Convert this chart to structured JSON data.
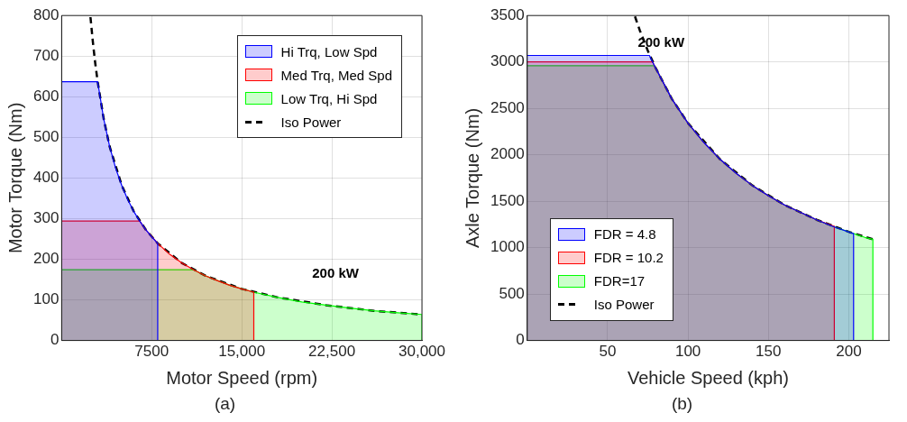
{
  "chart_data": [
    {
      "type": "area",
      "xlabel": "Motor Speed (rpm)",
      "ylabel": "Motor Torque (Nm)",
      "xlim": [
        0,
        30000
      ],
      "xticks": [
        {
          "value": 7500,
          "label": "7500"
        },
        {
          "value": 15000,
          "label": "15,000"
        },
        {
          "value": 22500,
          "label": "22,500"
        },
        {
          "value": 30000,
          "label": "30,000"
        }
      ],
      "ylim": [
        0,
        800
      ],
      "yticks": [
        0,
        100,
        200,
        300,
        400,
        500,
        600,
        700,
        800
      ],
      "grid": true,
      "legend": "top right",
      "marker": "none",
      "series": [
        {
          "name": "Hi Trq, Low Spd",
          "type": "area",
          "color": "#0000ff",
          "x": [
            0,
            3000,
            3500,
            4000,
            4500,
            5000,
            5500,
            6000,
            6500,
            7000,
            7500,
            8000,
            8000
          ],
          "values": [
            637,
            637,
            546,
            477,
            424,
            382,
            347,
            318,
            294,
            273,
            255,
            239,
            0
          ]
        },
        {
          "name": "Med Trq, Med Spd",
          "type": "area",
          "color": "#ff0000",
          "x": [
            0,
            6500,
            7000,
            8000,
            9000,
            10000,
            11000,
            12000,
            13000,
            14000,
            15000,
            16000,
            16000
          ],
          "values": [
            294,
            294,
            273,
            239,
            212,
            191,
            174,
            159,
            147,
            136,
            127,
            119,
            0
          ]
        },
        {
          "name": "Low Trq, Hi Spd",
          "type": "area",
          "color": "#00ff00",
          "x": [
            0,
            11000,
            12000,
            14000,
            16000,
            18000,
            20000,
            22000,
            24000,
            26000,
            28000,
            30000,
            30000
          ],
          "values": [
            174,
            174,
            159,
            136,
            119,
            106,
            95,
            87,
            80,
            73,
            68,
            64,
            0
          ]
        },
        {
          "name": "Iso Power",
          "type": "line",
          "line_style": "dashed",
          "color": "#000000",
          "x": [
            2400,
            2600,
            2800,
            3000,
            3500,
            4000,
            5000,
            6000,
            7000,
            8000,
            10000,
            12000,
            15000,
            18000,
            22000,
            26000,
            30000
          ],
          "values": [
            796,
            735,
            682,
            637,
            546,
            477,
            382,
            318,
            273,
            239,
            191,
            159,
            127,
            106,
            87,
            73,
            64
          ]
        }
      ],
      "annotations": [
        "200 kW",
        "(a)"
      ]
    },
    {
      "type": "area",
      "xlabel": "Vehicle Speed (kph)",
      "ylabel": "Axle Torque (Nm)",
      "xlim": [
        0,
        225
      ],
      "xticks": [
        50,
        100,
        150,
        200
      ],
      "ylim": [
        0,
        3500
      ],
      "yticks": [
        0,
        500,
        1000,
        1500,
        2000,
        2500,
        3000,
        3500
      ],
      "grid": true,
      "legend": "bottom left",
      "marker": "none",
      "series": [
        {
          "name": "FDR = 4.8",
          "type": "area",
          "color": "#0000ff",
          "x": [
            0,
            76,
            80,
            90,
            100,
            110,
            120,
            130,
            140,
            150,
            160,
            170,
            180,
            190,
            203,
            203
          ],
          "values": [
            3070,
            3070,
            2930,
            2600,
            2340,
            2130,
            1950,
            1800,
            1670,
            1560,
            1460,
            1380,
            1300,
            1230,
            1150,
            0
          ]
        },
        {
          "name": "FDR = 10.2",
          "type": "area",
          "color": "#ff0000",
          "x": [
            0,
            78,
            80,
            90,
            100,
            110,
            120,
            130,
            140,
            150,
            160,
            170,
            180,
            191,
            191
          ],
          "values": [
            3000,
            3000,
            2930,
            2600,
            2340,
            2130,
            1950,
            1800,
            1670,
            1560,
            1460,
            1380,
            1300,
            1230,
            0
          ]
        },
        {
          "name": "FDR=17",
          "type": "area",
          "color": "#00ff00",
          "x": [
            0,
            79,
            80,
            90,
            100,
            110,
            120,
            130,
            140,
            150,
            160,
            170,
            180,
            190,
            200,
            210,
            215,
            215
          ],
          "values": [
            2960,
            2960,
            2930,
            2600,
            2340,
            2130,
            1950,
            1800,
            1670,
            1560,
            1460,
            1380,
            1300,
            1230,
            1170,
            1110,
            1090,
            0
          ]
        },
        {
          "name": "Iso Power",
          "type": "line",
          "line_style": "dashed",
          "color": "#000000",
          "x": [
            67,
            70,
            75,
            80,
            90,
            100,
            120,
            140,
            160,
            180,
            200,
            215
          ],
          "values": [
            3490,
            3340,
            3120,
            2930,
            2600,
            2340,
            1950,
            1670,
            1460,
            1300,
            1170,
            1090
          ]
        }
      ],
      "annotations": [
        "200 kW",
        "(b)"
      ]
    }
  ]
}
